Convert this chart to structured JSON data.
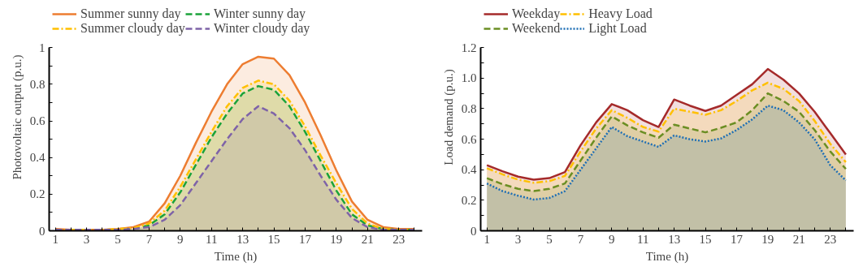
{
  "chart_data": [
    {
      "type": "area",
      "xlabel": "Time (h)",
      "ylabel": "Photovoltaic output (p.u.)",
      "legend": "top",
      "grid": false,
      "x": [
        1,
        2,
        3,
        4,
        5,
        6,
        7,
        8,
        9,
        10,
        11,
        12,
        13,
        14,
        15,
        16,
        17,
        18,
        19,
        20,
        21,
        22,
        23,
        24
      ],
      "xlim": [
        0.6,
        24.5
      ],
      "ylim": [
        0,
        1
      ],
      "xticks": [
        1,
        {
          "value": 2,
          "label": null
        },
        3,
        {
          "value": 4,
          "label": null
        },
        5,
        {
          "value": 6,
          "label": null
        },
        7,
        {
          "value": 8,
          "label": null
        },
        9,
        {
          "value": 10,
          "label": null
        },
        11,
        {
          "value": 12,
          "label": null
        },
        13,
        {
          "value": 14,
          "label": null
        },
        15,
        {
          "value": 16,
          "label": null
        },
        17,
        {
          "value": 18,
          "label": null
        },
        19,
        {
          "value": 20,
          "label": null
        },
        21,
        {
          "value": 22,
          "label": null
        },
        23,
        {
          "value": 24,
          "label": null
        }
      ],
      "yticks": [
        0,
        {
          "value": 0.1,
          "label": null
        },
        0.2,
        {
          "value": 0.3,
          "label": null
        },
        0.4,
        {
          "value": 0.5,
          "label": null
        },
        0.6,
        {
          "value": 0.7,
          "label": null
        },
        0.8,
        {
          "value": 0.9,
          "label": null
        },
        1
      ],
      "series": [
        {
          "name": "Summer sunny day",
          "color": "#ed7d31",
          "line_style": "solid",
          "values": [
            0.01,
            0.005,
            0.005,
            0.005,
            0.01,
            0.02,
            0.05,
            0.15,
            0.3,
            0.48,
            0.65,
            0.8,
            0.91,
            0.95,
            0.94,
            0.85,
            0.7,
            0.52,
            0.33,
            0.16,
            0.06,
            0.02,
            0.01,
            0.01
          ]
        },
        {
          "name": "Winter sunny day",
          "color": "#1aa33a",
          "line_style": "dashed",
          "values": [
            0.005,
            0.005,
            0.005,
            0.005,
            0.005,
            0.01,
            0.03,
            0.09,
            0.21,
            0.36,
            0.51,
            0.64,
            0.75,
            0.79,
            0.77,
            0.68,
            0.54,
            0.38,
            0.22,
            0.09,
            0.03,
            0.01,
            0.005,
            0.005
          ]
        },
        {
          "name": "Summer cloudy day",
          "color": "#ffc000",
          "line_style": "dashdot",
          "values": [
            0.005,
            0.005,
            0.005,
            0.005,
            0.01,
            0.015,
            0.04,
            0.11,
            0.24,
            0.39,
            0.54,
            0.68,
            0.78,
            0.82,
            0.8,
            0.71,
            0.57,
            0.41,
            0.26,
            0.12,
            0.04,
            0.01,
            0.005,
            0.005
          ]
        },
        {
          "name": "Winter cloudy day",
          "color": "#7e63a8",
          "line_style": "dashed",
          "values": [
            0.005,
            0.005,
            0.005,
            0.005,
            0.005,
            0.01,
            0.02,
            0.06,
            0.14,
            0.26,
            0.38,
            0.5,
            0.61,
            0.68,
            0.64,
            0.56,
            0.44,
            0.3,
            0.17,
            0.07,
            0.02,
            0.005,
            0.005,
            0.005
          ]
        }
      ]
    },
    {
      "type": "area",
      "xlabel": "Time (h)",
      "ylabel": "Load demand (p.u.)",
      "legend": "top",
      "grid": false,
      "x": [
        1,
        2,
        3,
        4,
        5,
        6,
        7,
        8,
        9,
        10,
        11,
        12,
        13,
        14,
        15,
        16,
        17,
        18,
        19,
        20,
        21,
        22,
        23,
        24
      ],
      "xlim": [
        0.6,
        24.5
      ],
      "ylim": [
        0,
        1.2
      ],
      "xticks": [
        1,
        {
          "value": 2,
          "label": null
        },
        3,
        {
          "value": 4,
          "label": null
        },
        5,
        {
          "value": 6,
          "label": null
        },
        7,
        {
          "value": 8,
          "label": null
        },
        9,
        {
          "value": 10,
          "label": null
        },
        11,
        {
          "value": 12,
          "label": null
        },
        13,
        {
          "value": 14,
          "label": null
        },
        15,
        {
          "value": 16,
          "label": null
        },
        17,
        {
          "value": 18,
          "label": null
        },
        19,
        {
          "value": 20,
          "label": null
        },
        21,
        {
          "value": 22,
          "label": null
        },
        23,
        {
          "value": 24,
          "label": null
        }
      ],
      "yticks": [
        0,
        {
          "value": 0.1,
          "label": null
        },
        0.2,
        {
          "value": 0.3,
          "label": null
        },
        0.4,
        {
          "value": 0.5,
          "label": null
        },
        0.6,
        {
          "value": 0.7,
          "label": null
        },
        0.8,
        {
          "value": 0.9,
          "label": null
        },
        {
          "value": 1.0,
          "label": "1.0"
        },
        {
          "value": 1.1,
          "label": null
        },
        1.2
      ],
      "series": [
        {
          "name": "Weekday",
          "color": "#a52a2a",
          "line_style": "solid",
          "values": [
            0.43,
            0.39,
            0.355,
            0.335,
            0.345,
            0.385,
            0.56,
            0.71,
            0.83,
            0.79,
            0.725,
            0.68,
            0.86,
            0.82,
            0.785,
            0.82,
            0.89,
            0.96,
            1.06,
            0.99,
            0.9,
            0.78,
            0.64,
            0.5
          ]
        },
        {
          "name": "Heavy Load",
          "color": "#ffc000",
          "line_style": "dashdot",
          "values": [
            0.41,
            0.37,
            0.335,
            0.315,
            0.325,
            0.36,
            0.52,
            0.67,
            0.79,
            0.74,
            0.68,
            0.65,
            0.8,
            0.78,
            0.76,
            0.79,
            0.85,
            0.92,
            0.97,
            0.93,
            0.85,
            0.72,
            0.57,
            0.45
          ]
        },
        {
          "name": "Weekend",
          "color": "#6b8e23",
          "line_style": "dashed",
          "values": [
            0.345,
            0.305,
            0.275,
            0.26,
            0.275,
            0.31,
            0.46,
            0.61,
            0.75,
            0.69,
            0.645,
            0.61,
            0.695,
            0.67,
            0.645,
            0.675,
            0.71,
            0.79,
            0.9,
            0.85,
            0.78,
            0.66,
            0.52,
            0.405
          ]
        },
        {
          "name": "Light Load",
          "color": "#1f6fb5",
          "line_style": "dotted",
          "values": [
            0.31,
            0.26,
            0.23,
            0.205,
            0.215,
            0.26,
            0.4,
            0.54,
            0.68,
            0.62,
            0.585,
            0.55,
            0.625,
            0.6,
            0.585,
            0.605,
            0.66,
            0.73,
            0.82,
            0.79,
            0.71,
            0.6,
            0.43,
            0.33
          ]
        }
      ]
    }
  ]
}
